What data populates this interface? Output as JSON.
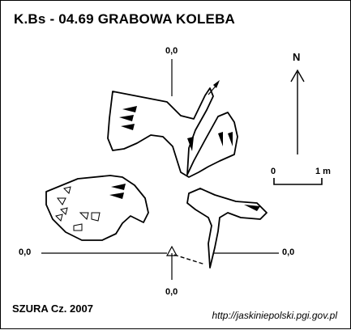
{
  "header": {
    "title": "K.Bs - 04.69  GRABOWA KOLEBA"
  },
  "axes": {
    "top_label": "0,0",
    "bottom_label": "0,0",
    "left_label": "0,0",
    "right_label": "0,0"
  },
  "north": {
    "label": "N"
  },
  "scale": {
    "start_label": "0",
    "end_label": "1 m"
  },
  "footer": {
    "author": "SZURA Cz. 2007",
    "url": "http://jaskiniepolski.pgi.gov.pl"
  },
  "colors": {
    "ink": "#000000",
    "background": "#ffffff"
  }
}
